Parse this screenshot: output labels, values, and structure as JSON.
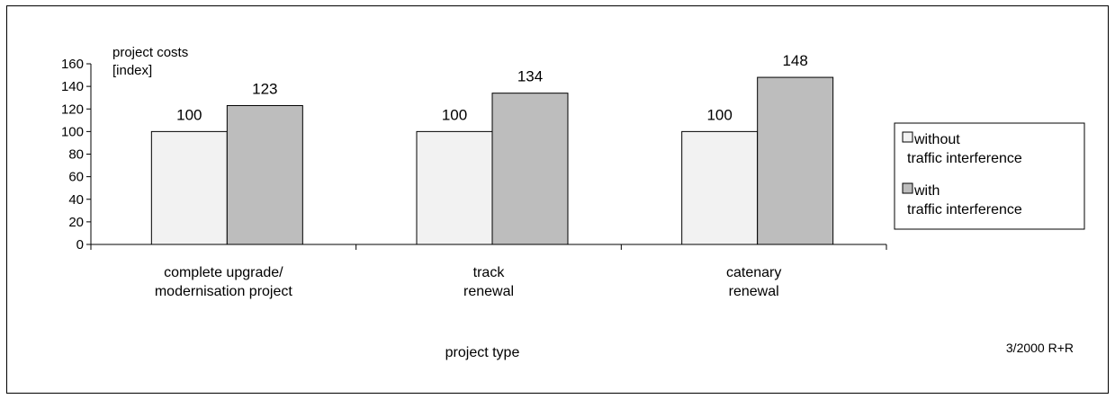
{
  "chart_data": {
    "type": "bar",
    "ylabel_lines": [
      "project costs",
      "[index]"
    ],
    "xlabel": "project type",
    "footnote": "3/2000 R+R",
    "categories": [
      [
        "complete upgrade/",
        "modernisation project"
      ],
      [
        "track",
        "renewal"
      ],
      [
        "catenary",
        "renewal"
      ]
    ],
    "series": [
      {
        "name_lines": [
          "without",
          "traffic interference"
        ],
        "values": [
          100,
          100,
          100
        ],
        "color": "#f2f2f2"
      },
      {
        "name_lines": [
          "with",
          "traffic interference"
        ],
        "values": [
          123,
          134,
          148
        ],
        "color": "#bdbdbd"
      }
    ],
    "data_labels": [
      [
        "100",
        "100",
        "100"
      ],
      [
        "123",
        "134",
        "148"
      ]
    ],
    "ylim": [
      0,
      160
    ],
    "yticks": [
      0,
      20,
      40,
      60,
      80,
      100,
      120,
      140,
      160
    ],
    "grid": false,
    "legend_position": "right"
  }
}
